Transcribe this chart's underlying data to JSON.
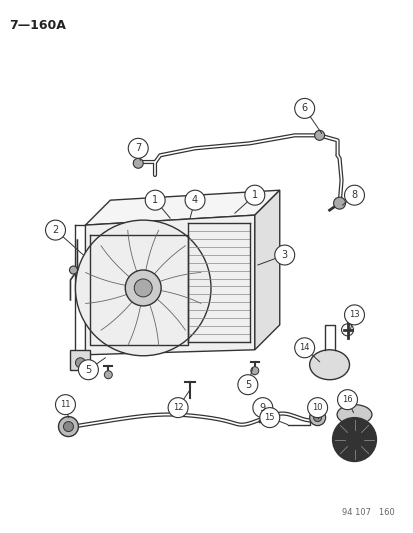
{
  "title": "7—160A",
  "background_color": "#ffffff",
  "text_color": "#222222",
  "watermark": "94 107   160",
  "line_color": "#333333",
  "lw": 1.0
}
